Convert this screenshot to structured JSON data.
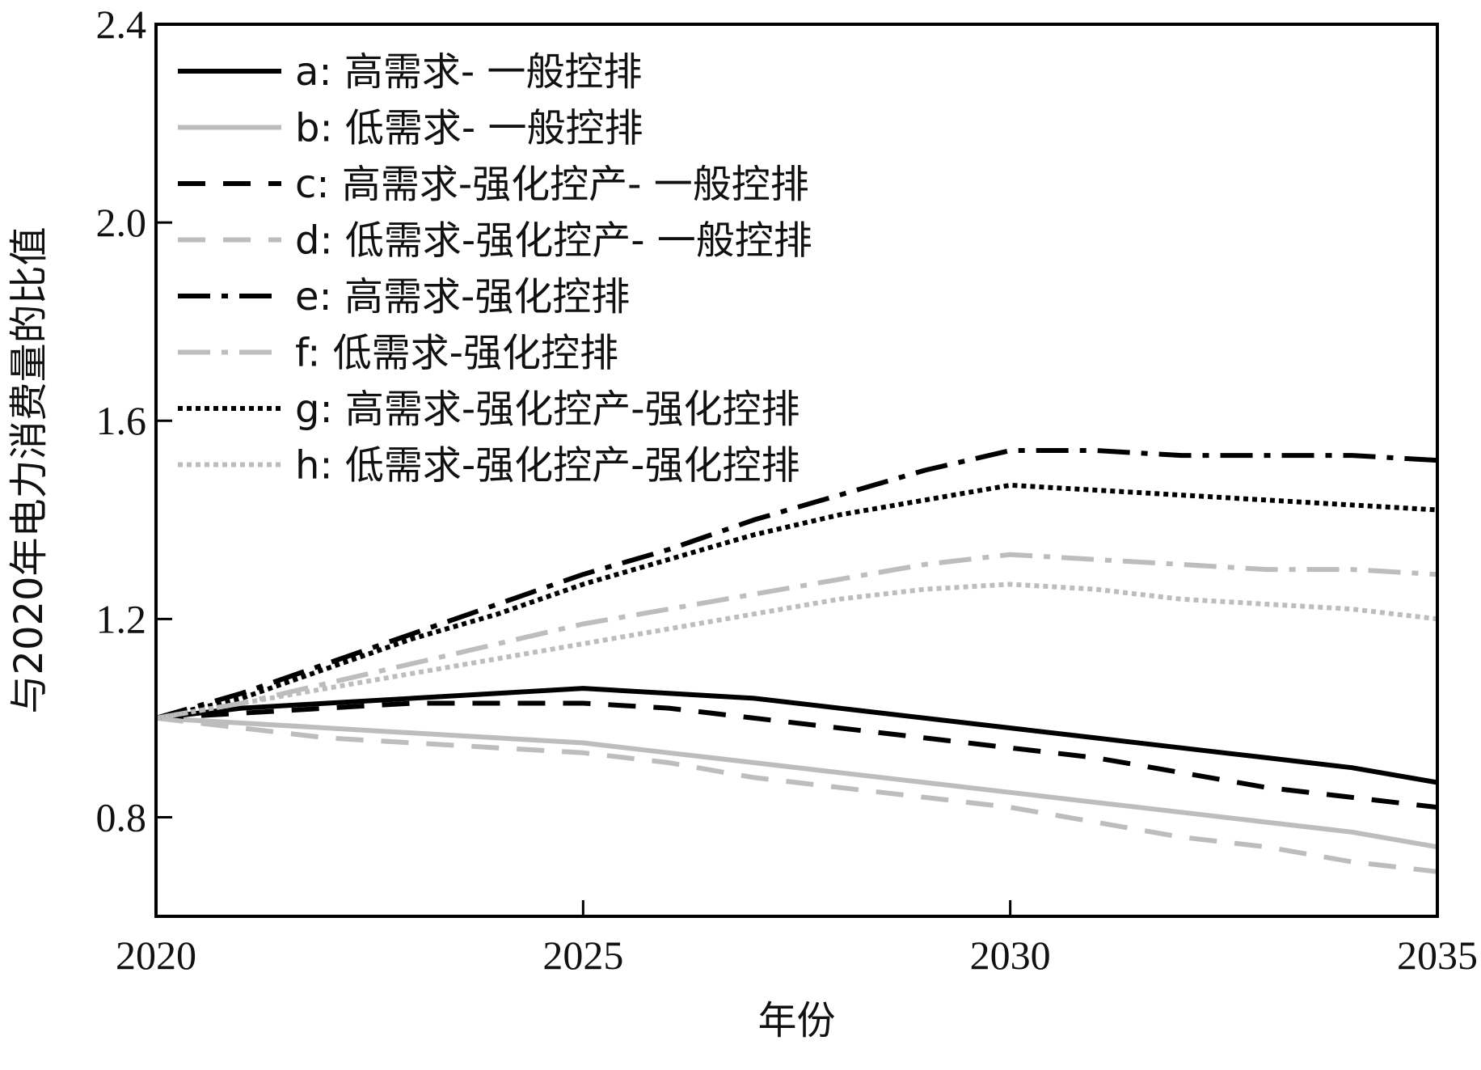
{
  "chart_data": {
    "type": "line",
    "title": "",
    "xlabel": "年份",
    "ylabel": "与2020年电力消费量的比值",
    "x": [
      2020,
      2021,
      2022,
      2023,
      2024,
      2025,
      2026,
      2027,
      2028,
      2029,
      2030,
      2031,
      2032,
      2033,
      2034,
      2035
    ],
    "xlim": [
      2020,
      2035
    ],
    "ylim": [
      0.6,
      2.4
    ],
    "xticks": [
      2020,
      2025,
      2030,
      2035
    ],
    "yticks": [
      0.8,
      1.2,
      1.6,
      2.0,
      2.4
    ],
    "xtick_labels": [
      "2020",
      "2025",
      "2030",
      "2035"
    ],
    "ytick_labels": [
      "0.8",
      "1.2",
      "1.6",
      "2.0",
      "2.4"
    ],
    "grid": false,
    "legend_position": "top-left",
    "series": [
      {
        "name": "a: 高需求- 一般控排",
        "color": "#000000",
        "dash": "solid",
        "values": [
          1.0,
          1.02,
          1.03,
          1.04,
          1.05,
          1.06,
          1.05,
          1.04,
          1.02,
          1.0,
          0.98,
          0.96,
          0.94,
          0.92,
          0.9,
          0.87
        ]
      },
      {
        "name": "b: 低需求- 一般控排",
        "color": "#bdbdbd",
        "dash": "solid",
        "values": [
          1.0,
          0.99,
          0.98,
          0.97,
          0.96,
          0.95,
          0.93,
          0.91,
          0.89,
          0.87,
          0.85,
          0.83,
          0.81,
          0.79,
          0.77,
          0.74
        ]
      },
      {
        "name": "c: 高需求-强化控产- 一般控排",
        "color": "#000000",
        "dash": "dash",
        "values": [
          1.0,
          1.01,
          1.02,
          1.03,
          1.03,
          1.03,
          1.02,
          1.0,
          0.98,
          0.96,
          0.94,
          0.92,
          0.89,
          0.86,
          0.84,
          0.82
        ]
      },
      {
        "name": "d: 低需求-强化控产- 一般控排",
        "color": "#bdbdbd",
        "dash": "dash",
        "values": [
          1.0,
          0.98,
          0.96,
          0.95,
          0.94,
          0.93,
          0.91,
          0.88,
          0.86,
          0.84,
          0.82,
          0.79,
          0.76,
          0.74,
          0.71,
          0.69
        ]
      },
      {
        "name": "e: 高需求-强化控排",
        "color": "#000000",
        "dash": "dashdot",
        "values": [
          1.0,
          1.05,
          1.11,
          1.17,
          1.23,
          1.29,
          1.34,
          1.4,
          1.45,
          1.5,
          1.54,
          1.54,
          1.53,
          1.53,
          1.53,
          1.52
        ]
      },
      {
        "name": "f: 低需求-强化控排",
        "color": "#bdbdbd",
        "dash": "dashdot",
        "values": [
          1.0,
          1.03,
          1.07,
          1.11,
          1.15,
          1.19,
          1.22,
          1.25,
          1.28,
          1.31,
          1.33,
          1.32,
          1.31,
          1.3,
          1.3,
          1.29
        ]
      },
      {
        "name": "g: 高需求-强化控产-强化控排",
        "color": "#000000",
        "dash": "dot",
        "values": [
          1.0,
          1.04,
          1.1,
          1.16,
          1.21,
          1.27,
          1.32,
          1.37,
          1.41,
          1.44,
          1.47,
          1.46,
          1.45,
          1.44,
          1.43,
          1.42
        ]
      },
      {
        "name": "h: 低需求-强化控产-强化控排",
        "color": "#bdbdbd",
        "dash": "dot",
        "values": [
          1.0,
          1.03,
          1.06,
          1.09,
          1.12,
          1.15,
          1.18,
          1.21,
          1.24,
          1.26,
          1.27,
          1.26,
          1.24,
          1.23,
          1.22,
          1.2
        ]
      }
    ]
  }
}
